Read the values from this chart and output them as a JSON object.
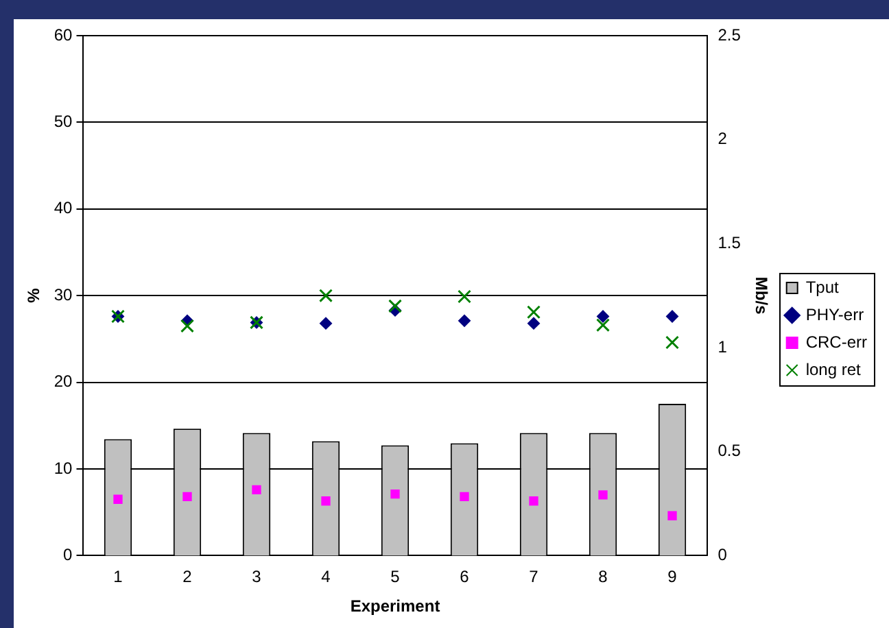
{
  "chart_data": {
    "type": "bar",
    "xlabel": "Experiment",
    "ylabel": "%",
    "y2label": "Mb/s",
    "categories": [
      "1",
      "2",
      "3",
      "4",
      "5",
      "6",
      "7",
      "8",
      "9"
    ],
    "series": [
      {
        "name": "Tput",
        "axis": "y2",
        "color": "#c0c0c0",
        "values": [
          0.56,
          0.61,
          0.59,
          0.55,
          0.53,
          0.54,
          0.59,
          0.59,
          0.73
        ]
      },
      {
        "name": "PHY-err",
        "type": "scatter",
        "marker": "diamond",
        "color": "#000080",
        "values": [
          27.6,
          27.1,
          26.9,
          26.8,
          28.3,
          27.1,
          26.8,
          27.6,
          27.6
        ]
      },
      {
        "name": "CRC-err",
        "type": "scatter",
        "marker": "square",
        "color": "#ff00ff",
        "values": [
          6.5,
          6.8,
          7.6,
          6.3,
          7.1,
          6.8,
          6.3,
          7.0,
          4.6
        ]
      },
      {
        "name": "long ret",
        "type": "scatter",
        "marker": "cross",
        "color": "#008000",
        "values": [
          27.6,
          26.5,
          26.9,
          30.0,
          28.8,
          29.9,
          28.1,
          26.6,
          24.6
        ]
      }
    ],
    "ylim": [
      0,
      60
    ],
    "yticks": [
      0,
      10,
      20,
      30,
      40,
      50,
      60
    ],
    "y2lim": [
      0,
      2.5
    ],
    "y2ticks": [
      0,
      0.5,
      1,
      1.5,
      2,
      2.5
    ],
    "grid": "y",
    "legend": "right"
  }
}
